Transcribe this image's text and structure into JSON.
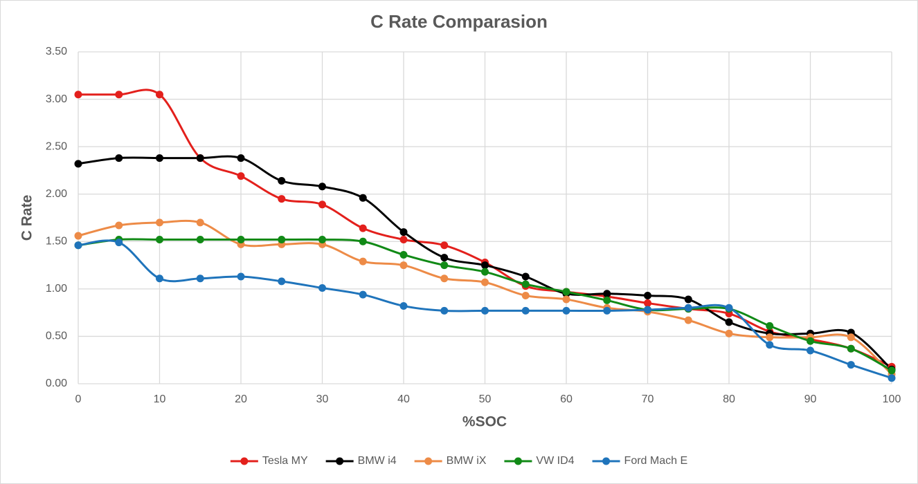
{
  "chart_data": {
    "type": "line",
    "title": "C Rate Comparasion",
    "x_label": "%SOC",
    "y_label": "C Rate",
    "x": [
      0,
      5,
      10,
      15,
      20,
      25,
      30,
      35,
      40,
      45,
      50,
      55,
      60,
      65,
      70,
      75,
      80,
      85,
      90,
      95,
      100
    ],
    "series": [
      {
        "name": "Tesla MY",
        "color": "#e3201c",
        "values": [
          3.05,
          3.05,
          3.05,
          2.38,
          2.19,
          1.95,
          1.89,
          1.64,
          1.52,
          1.46,
          1.28,
          1.03,
          0.97,
          0.92,
          0.85,
          0.79,
          0.74,
          0.55,
          0.47,
          0.37,
          0.18
        ]
      },
      {
        "name": "BMW i4",
        "color": "#000000",
        "values": [
          2.32,
          2.38,
          2.38,
          2.38,
          2.38,
          2.14,
          2.08,
          1.96,
          1.6,
          1.33,
          1.25,
          1.13,
          0.95,
          0.95,
          0.93,
          0.89,
          0.65,
          0.53,
          0.53,
          0.54,
          0.15
        ]
      },
      {
        "name": "BMW iX",
        "color": "#ed8b47",
        "values": [
          1.56,
          1.67,
          1.7,
          1.7,
          1.47,
          1.47,
          1.47,
          1.29,
          1.25,
          1.11,
          1.07,
          0.93,
          0.89,
          0.8,
          0.76,
          0.67,
          0.53,
          0.49,
          0.49,
          0.49,
          0.1
        ]
      },
      {
        "name": "VW ID4",
        "color": "#118a16",
        "values": [
          1.46,
          1.52,
          1.52,
          1.52,
          1.52,
          1.52,
          1.52,
          1.5,
          1.36,
          1.25,
          1.18,
          1.05,
          0.97,
          0.88,
          0.78,
          0.79,
          0.79,
          0.61,
          0.45,
          0.37,
          0.14
        ]
      },
      {
        "name": "Ford Mach E",
        "color": "#1f74bb",
        "values": [
          1.46,
          1.49,
          1.11,
          1.11,
          1.13,
          1.08,
          1.01,
          0.94,
          0.82,
          0.77,
          0.77,
          0.77,
          0.77,
          0.77,
          0.78,
          0.8,
          0.8,
          0.41,
          0.35,
          0.2,
          0.06
        ]
      }
    ],
    "xlim": [
      0,
      100
    ],
    "xticks": [
      0,
      10,
      20,
      30,
      40,
      50,
      60,
      70,
      80,
      90,
      100
    ],
    "ylim": [
      0,
      3.5
    ],
    "yticks": [
      {
        "value": 0,
        "label": "0.00"
      },
      {
        "value": 0.5,
        "label": "0.50"
      },
      {
        "value": 1,
        "label": "1.00"
      },
      {
        "value": 1.5,
        "label": "1.50"
      },
      {
        "value": 2,
        "label": "2.00"
      },
      {
        "value": 2.5,
        "label": "2.50"
      },
      {
        "value": 3,
        "label": "3.00"
      },
      {
        "value": 3.5,
        "label": "3.50"
      }
    ],
    "grid": true,
    "smooth": true,
    "legend": "bottom"
  }
}
